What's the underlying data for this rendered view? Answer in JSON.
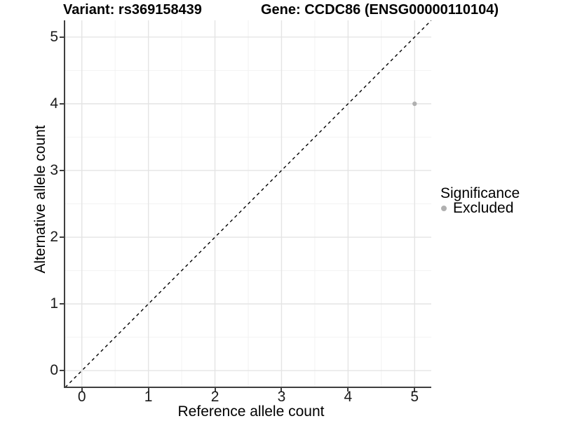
{
  "chart_data": {
    "type": "scatter",
    "title_left": "Variant: rs369158439",
    "title_right": "Gene: CCDC86 (ENSG00000110104)",
    "xlabel": "Reference allele count",
    "ylabel": "Alternative allele count",
    "xlim": [
      -0.25,
      5.25
    ],
    "ylim": [
      -0.25,
      5.25
    ],
    "x_ticks": [
      0,
      1,
      2,
      3,
      4,
      5
    ],
    "y_ticks": [
      0,
      1,
      2,
      3,
      4,
      5
    ],
    "x_minor": [
      0.5,
      1.5,
      2.5,
      3.5,
      4.5
    ],
    "y_minor": [
      0.5,
      1.5,
      2.5,
      3.5,
      4.5
    ],
    "grid": "major-and-minor",
    "legend_position": "right",
    "points": [
      {
        "x": 5,
        "y": 4,
        "series": "Excluded",
        "color": "#b0b0b0"
      }
    ],
    "reference_line": {
      "type": "identity",
      "slope": 1,
      "intercept": 0,
      "style": "dashed",
      "color": "#000000"
    },
    "legend": {
      "title": "Significance",
      "items": [
        {
          "label": "Excluded",
          "color": "#b0b0b0"
        }
      ]
    }
  },
  "colors": {
    "background": "#ffffff",
    "grid_major": "#e4e4e4",
    "grid_minor": "#f2f2f2",
    "axis_line": "#3f3f3f",
    "tick_label": "#1a1a1a",
    "title": "#000000",
    "point": "#b0b0b0"
  }
}
